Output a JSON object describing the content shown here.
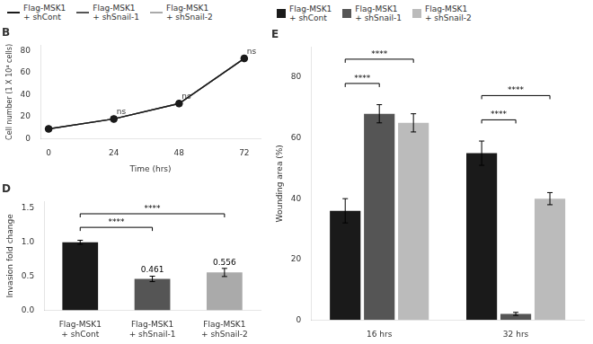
{
  "chart_data": [
    {
      "type": "line",
      "title": "B",
      "x_label": "Time (hrs)",
      "y_label": "Cell number (1 X 10⁴ cells)",
      "x": [
        0,
        24,
        48,
        72
      ],
      "series": [
        {
          "name": "Flag-MSK1\n+ shCont",
          "color": "#1a1a1a",
          "marker": "circle",
          "values": [
            9,
            18,
            32,
            73
          ]
        },
        {
          "name": "Flag-MSK1\n+ shSnail-1",
          "color": "#555555",
          "marker": "square",
          "values": [
            9,
            18,
            32,
            73
          ]
        },
        {
          "name": "Flag-MSK1\n+ shSnail-2",
          "color": "#aaaaaa",
          "marker": "diamond",
          "values": [
            9,
            18,
            32,
            73
          ]
        }
      ],
      "xlim": [
        -3,
        78
      ],
      "xticks": [
        0,
        24,
        48,
        72
      ],
      "ylim": [
        0,
        85
      ],
      "yticks": [
        0,
        20,
        40,
        60,
        80
      ],
      "grid": false,
      "legend": "upper left",
      "annotations": [
        {
          "text": "ns",
          "x": 24,
          "y": 19
        },
        {
          "text": "ns",
          "x": 48,
          "y": 33
        },
        {
          "text": "ns",
          "x": 72,
          "y": 74
        }
      ]
    },
    {
      "type": "bar",
      "title": "D",
      "y_label": "Invasion fold change",
      "categories": [
        "Flag-MSK1\n+ shCont",
        "Flag-MSK1\n+ shSnail-1",
        "Flag-MSK1\n+ shSnail-2"
      ],
      "values": [
        1.0,
        0.461,
        0.556
      ],
      "errors": [
        0.03,
        0.04,
        0.06
      ],
      "value_labels": [
        null,
        "0.461",
        "0.556"
      ],
      "colors": [
        "#1a1a1a",
        "#555555",
        "#aaaaaa"
      ],
      "ylim": [
        0,
        1.6
      ],
      "yticks": [
        {
          "value": 0,
          "label": "0.0"
        },
        0.5,
        {
          "value": 1,
          "label": "1.0"
        },
        1.5
      ],
      "grid": false,
      "annotations": [
        {
          "text": "****",
          "between": [
            "Flag-MSK1\n+ shCont",
            "Flag-MSK1\n+ shSnail-1"
          ],
          "y": 1.22
        },
        {
          "text": "****",
          "between": [
            "Flag-MSK1\n+ shCont",
            "Flag-MSK1\n+ shSnail-2"
          ],
          "y": 1.42
        }
      ]
    },
    {
      "type": "bar",
      "title": "E",
      "y_label": "Wounding area (%)",
      "categories": [
        "16 hrs",
        "32 hrs"
      ],
      "series": [
        {
          "name": "Flag-MSK1\n+ shCont",
          "color": "#1a1a1a",
          "values": [
            36,
            55
          ],
          "errors": [
            4,
            4
          ]
        },
        {
          "name": "Flag-MSK1\n+ shSnail-1",
          "color": "#555555",
          "values": [
            68,
            2
          ],
          "errors": [
            3,
            0.5
          ]
        },
        {
          "name": "Flag-MSK1\n+ shSnail-2",
          "color": "#bbbbbb",
          "values": [
            65,
            40
          ],
          "errors": [
            3,
            2
          ]
        }
      ],
      "ylim": [
        0,
        90
      ],
      "yticks": [
        0,
        20,
        40,
        60,
        80
      ],
      "grid": false,
      "legend": "upper left",
      "annotations": [
        {
          "text": "****",
          "category": "16 hrs",
          "between": [
            "Flag-MSK1\n+ shCont",
            "Flag-MSK1\n+ shSnail-1"
          ],
          "y": 78
        },
        {
          "text": "****",
          "category": "16 hrs",
          "between": [
            "Flag-MSK1\n+ shCont",
            "Flag-MSK1\n+ shSnail-2"
          ],
          "y": 86
        },
        {
          "text": "****",
          "category": "32 hrs",
          "between": [
            "Flag-MSK1\n+ shCont",
            "Flag-MSK1\n+ shSnail-1"
          ],
          "y": 66
        },
        {
          "text": "****",
          "category": "32 hrs",
          "between": [
            "Flag-MSK1\n+ shCont",
            "Flag-MSK1\n+ shSnail-2"
          ],
          "y": 74
        }
      ]
    }
  ]
}
